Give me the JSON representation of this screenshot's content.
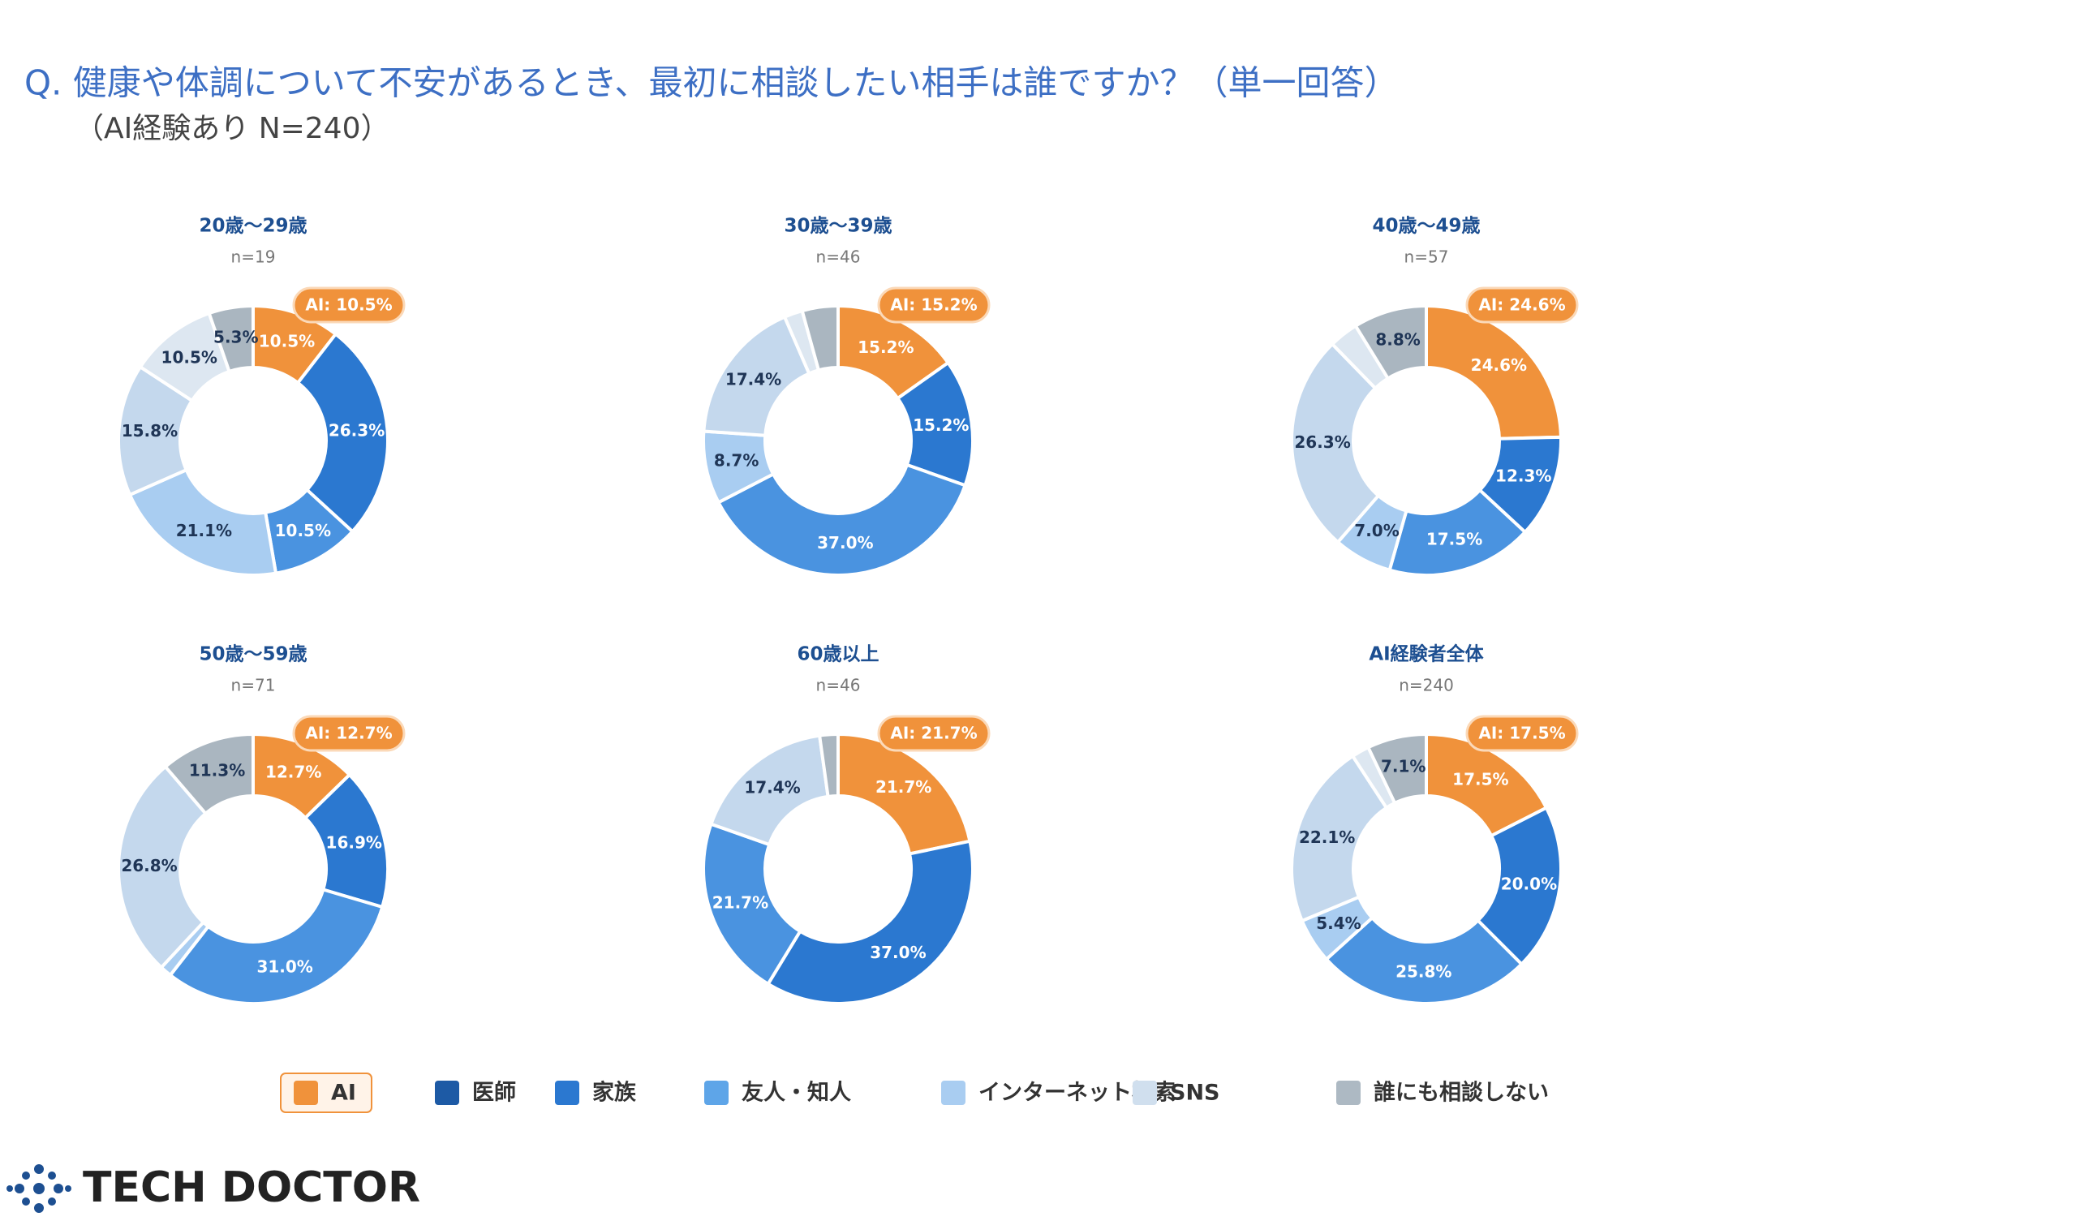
{
  "header": {
    "title": "Q.  健康や体調について不安があるとき、最初に相談したい相手は誰ですか？（単一回答）",
    "subtitle": "（AI経験あり N=240）"
  },
  "chart_data": [
    {
      "type": "donut",
      "title": "20歳～29歳",
      "subtitle": "n=19",
      "badge": "AI: 10.5%",
      "categories": [
        "AI",
        "医師",
        "家族",
        "友人・知人",
        "インターネット検索",
        "SNS",
        "誰にも相談しない"
      ],
      "colors": [
        "#f0923b",
        "#2b78d0",
        "#4a93e0",
        "#a9cdf1",
        "#c4d8ed",
        "#dde7f1",
        "#aab6c0"
      ],
      "values": [
        10.5,
        26.3,
        10.5,
        21.1,
        15.8,
        10.5,
        5.3
      ],
      "value_labels": [
        "10.5%",
        "26.3%",
        "10.5%",
        "21.1%",
        "15.8%",
        "10.5%",
        "5.3%"
      ]
    },
    {
      "type": "donut",
      "title": "30歳～39歳",
      "subtitle": "n=46",
      "badge": "AI: 15.2%",
      "categories": [
        "AI",
        "医師",
        "家族",
        "友人・知人",
        "インターネット検索",
        "SNS",
        "誰にも相談しない"
      ],
      "colors": [
        "#f0923b",
        "#2b78d0",
        "#4a93e0",
        "#a9cdf1",
        "#c4d8ed",
        "#dde7f1",
        "#aab6c0"
      ],
      "values": [
        15.2,
        15.2,
        37.0,
        8.7,
        17.4,
        2.2,
        4.3
      ],
      "value_labels": [
        "15.2%",
        "15.2%",
        "37.0%",
        "8.7%",
        "17.4%",
        null,
        null
      ]
    },
    {
      "type": "donut",
      "title": "40歳～49歳",
      "subtitle": "n=57",
      "badge": "AI: 24.6%",
      "categories": [
        "AI",
        "医師",
        "家族",
        "友人・知人",
        "インターネット検索",
        "SNS",
        "誰にも相談しない"
      ],
      "colors": [
        "#f0923b",
        "#2b78d0",
        "#4a93e0",
        "#a9cdf1",
        "#c4d8ed",
        "#dde7f1",
        "#aab6c0"
      ],
      "values": [
        24.6,
        12.3,
        17.5,
        7.0,
        26.3,
        3.5,
        8.8
      ],
      "value_labels": [
        "24.6%",
        "12.3%",
        "17.5%",
        "7.0%",
        "26.3%",
        null,
        "8.8%"
      ]
    },
    {
      "type": "donut",
      "title": "50歳～59歳",
      "subtitle": "n=71",
      "badge": "AI: 12.7%",
      "categories": [
        "AI",
        "医師",
        "家族",
        "友人・知人",
        "インターネット検索",
        "SNS",
        "誰にも相談しない"
      ],
      "colors": [
        "#f0923b",
        "#2b78d0",
        "#4a93e0",
        "#a9cdf1",
        "#c4d8ed",
        "#dde7f1",
        "#aab6c0"
      ],
      "values": [
        12.7,
        16.9,
        31.0,
        1.4,
        26.8,
        0,
        11.3
      ],
      "value_labels": [
        "12.7%",
        "16.9%",
        "31.0%",
        null,
        "26.8%",
        null,
        "11.3%"
      ]
    },
    {
      "type": "donut",
      "title": "60歳以上",
      "subtitle": "n=46",
      "badge": "AI: 21.7%",
      "categories": [
        "AI",
        "医師",
        "家族",
        "友人・知人",
        "インターネット検索",
        "SNS",
        "誰にも相談しない"
      ],
      "colors": [
        "#f0923b",
        "#2b78d0",
        "#4a93e0",
        "#a9cdf1",
        "#c4d8ed",
        "#dde7f1",
        "#aab6c0"
      ],
      "values": [
        21.7,
        37.0,
        21.7,
        0,
        17.4,
        0,
        2.2
      ],
      "value_labels": [
        "21.7%",
        "37.0%",
        "21.7%",
        null,
        "17.4%",
        null,
        null
      ]
    },
    {
      "type": "donut",
      "title": "AI経験者全体",
      "subtitle": "n=240",
      "badge": "AI: 17.5%",
      "categories": [
        "AI",
        "医師",
        "家族",
        "友人・知人",
        "インターネット検索",
        "SNS",
        "誰にも相談しない"
      ],
      "colors": [
        "#f0923b",
        "#2b78d0",
        "#4a93e0",
        "#a9cdf1",
        "#c4d8ed",
        "#dde7f1",
        "#aab6c0"
      ],
      "values": [
        17.5,
        20.0,
        25.8,
        5.4,
        22.1,
        2.1,
        7.1
      ],
      "value_labels": [
        "17.5%",
        "20.0%",
        "25.8%",
        "5.4%",
        "22.1%",
        null,
        "7.1%"
      ]
    }
  ],
  "legend": {
    "colors": [
      "#f0923b",
      "#1d5aa5",
      "#2b78d0",
      "#5ea5e8",
      "#a9cdf1",
      "#d0dfee",
      "#adb9c3"
    ]
  },
  "footer": {
    "logo": "TECH DOCTOR"
  }
}
